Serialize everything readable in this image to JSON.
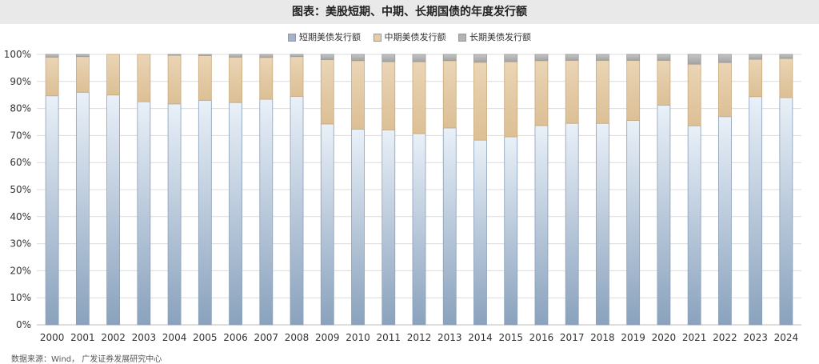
{
  "title": "图表：美股短期、中期、长期国债的年度发行额",
  "source": "数据来源：Wind， 广发证券发展研究中心",
  "colors": {
    "short": "#9fb4cc",
    "mid": "#e6cca8",
    "long": "#b3b3b3",
    "grid": "#dcdcdc",
    "title_bg": "#e9e9e9"
  },
  "chart_data": {
    "type": "bar",
    "stacked": true,
    "title": "图表：美股短期、中期、长期国债的年度发行额",
    "categories": [
      "2000",
      "2001",
      "2002",
      "2003",
      "2004",
      "2005",
      "2006",
      "2007",
      "2008",
      "2009",
      "2010",
      "2011",
      "2012",
      "2013",
      "2014",
      "2015",
      "2016",
      "2017",
      "2018",
      "2019",
      "2020",
      "2021",
      "2022",
      "2023",
      "2024"
    ],
    "y_ticks": [
      "0%",
      "10%",
      "20%",
      "30%",
      "40%",
      "50%",
      "60%",
      "70%",
      "80%",
      "90%",
      "100%"
    ],
    "ylim": [
      0,
      100
    ],
    "grid": true,
    "legend_position": "top",
    "series": [
      {
        "name": "短期美债发行额",
        "values": [
          84.7,
          86.0,
          85.0,
          82.5,
          81.7,
          83.0,
          82.2,
          83.4,
          84.5,
          74.3,
          72.3,
          72.1,
          70.7,
          72.8,
          68.3,
          69.5,
          73.7,
          74.5,
          74.5,
          75.6,
          81.2,
          73.6,
          77.0,
          84.4,
          84.0
        ]
      },
      {
        "name": "中期美债发行额",
        "values": [
          14.3,
          13.2,
          15.0,
          17.5,
          18.0,
          16.6,
          16.8,
          15.5,
          14.7,
          23.8,
          25.4,
          25.2,
          26.6,
          24.9,
          28.8,
          27.8,
          24.0,
          23.3,
          23.3,
          22.2,
          16.6,
          22.8,
          20.0,
          13.8,
          14.5
        ]
      },
      {
        "name": "长期美债发行额",
        "values": [
          1.0,
          0.8,
          0.0,
          0.0,
          0.3,
          0.4,
          1.0,
          1.1,
          0.8,
          1.9,
          2.3,
          2.7,
          2.7,
          2.3,
          2.9,
          2.7,
          2.3,
          2.2,
          2.2,
          2.2,
          2.2,
          3.6,
          3.0,
          1.8,
          1.5
        ]
      }
    ]
  }
}
